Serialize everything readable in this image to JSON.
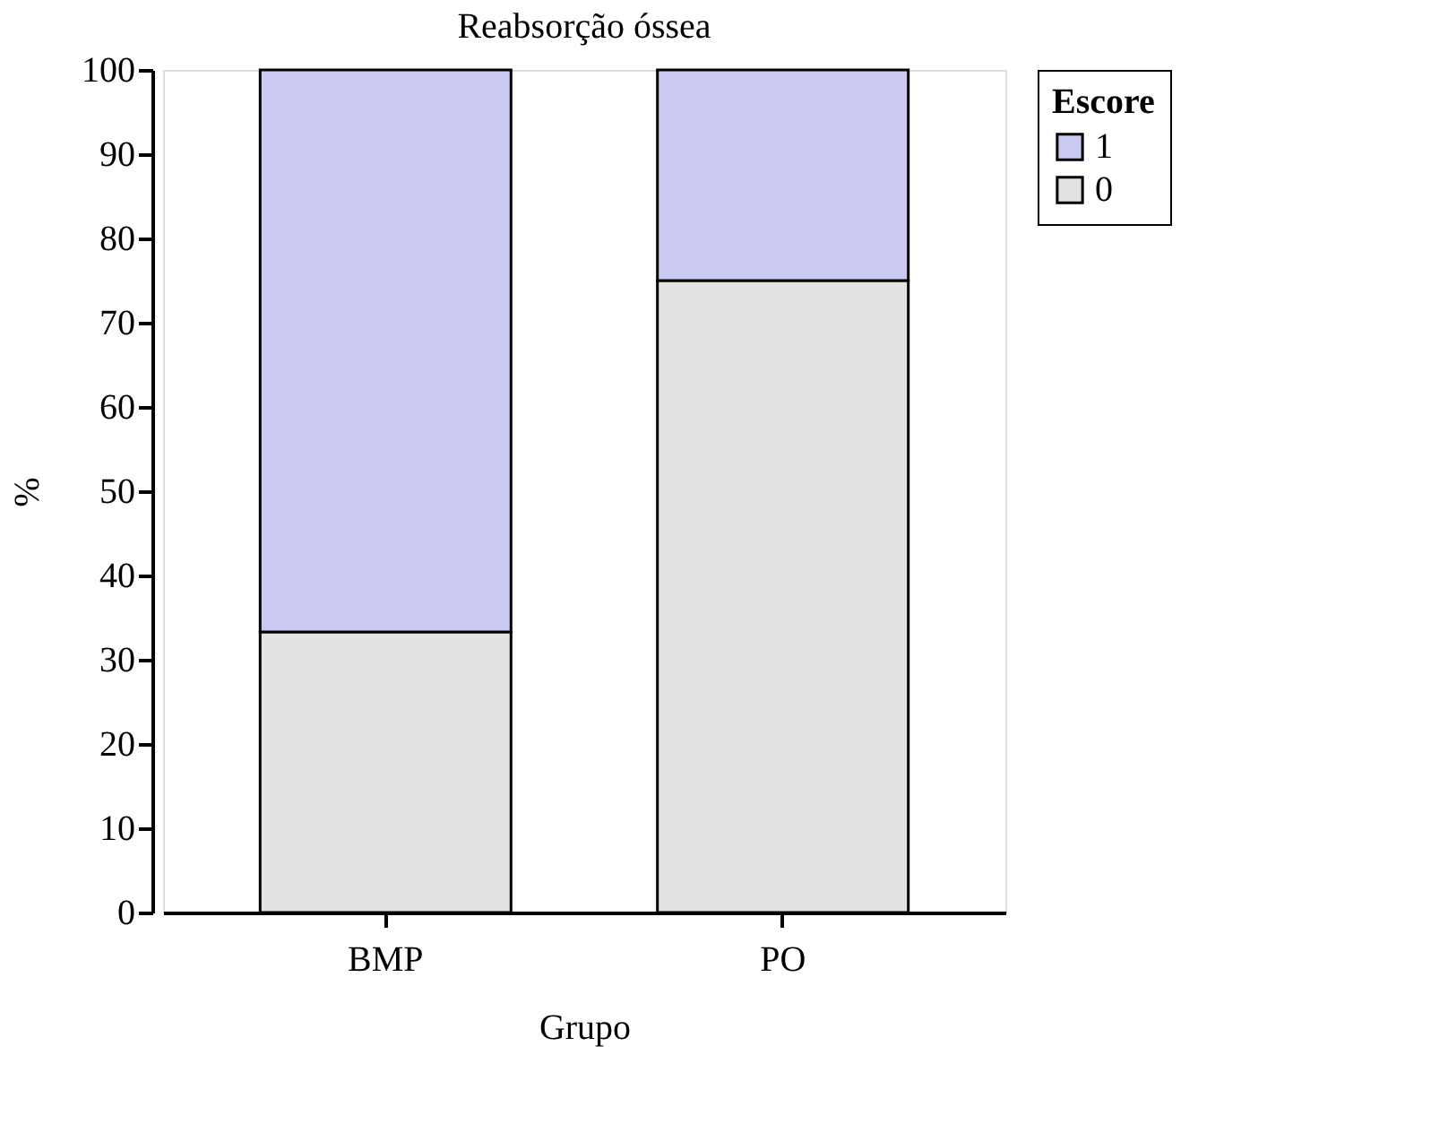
{
  "chart_data": {
    "type": "bar",
    "title": "Reabsorção óssea",
    "xlabel": "Grupo",
    "ylabel": "%",
    "legend_title": "Escore",
    "categories": [
      "BMP",
      "PO"
    ],
    "series": [
      {
        "name": "0",
        "color": "#e2e2e2",
        "values": [
          33.3,
          75
        ]
      },
      {
        "name": "1",
        "color": "#c9c9f2",
        "values": [
          66.7,
          25
        ]
      }
    ],
    "stacked": true,
    "ylim": [
      0,
      100
    ],
    "yticks": [
      0,
      10,
      20,
      30,
      40,
      50,
      60,
      70,
      80,
      90,
      100
    ],
    "grid": false,
    "legend": "right"
  }
}
